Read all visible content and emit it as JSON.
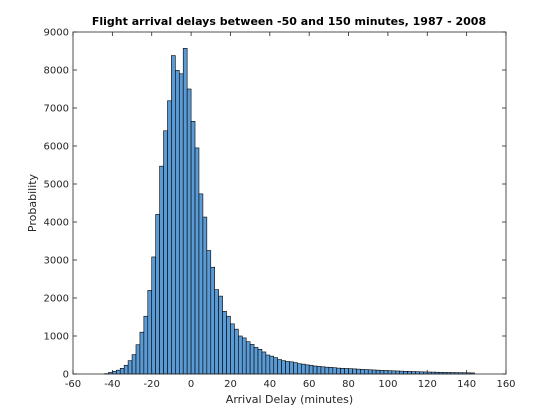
{
  "chart_data": {
    "type": "bar",
    "title": "Flight arrival delays between -50 and 150 minutes, 1987 - 2008",
    "xlabel": "Arrival Delay (minutes)",
    "ylabel": "Probability",
    "xlim": [
      -60,
      160
    ],
    "ylim": [
      0,
      9000
    ],
    "xticks": [
      "-60",
      "-40",
      "-20",
      "0",
      "20",
      "40",
      "60",
      "80",
      "100",
      "120",
      "140",
      "160"
    ],
    "yticks": [
      "0",
      "1000",
      "2000",
      "3000",
      "4000",
      "5000",
      "6000",
      "7000",
      "8000",
      "9000"
    ],
    "grid": false,
    "bin_width": 2,
    "bin_start": -44,
    "values": [
      10,
      40,
      70,
      100,
      150,
      230,
      350,
      510,
      770,
      1100,
      1520,
      2200,
      3080,
      4200,
      5470,
      6400,
      7190,
      8380,
      7990,
      7900,
      8570,
      7500,
      6650,
      5950,
      4740,
      4130,
      3250,
      2810,
      2220,
      2050,
      1650,
      1520,
      1320,
      1180,
      1000,
      950,
      850,
      780,
      700,
      650,
      580,
      500,
      470,
      430,
      380,
      350,
      330,
      320,
      300,
      270,
      260,
      240,
      230,
      210,
      200,
      190,
      180,
      175,
      165,
      155,
      150,
      145,
      140,
      135,
      128,
      122,
      117,
      111,
      106,
      101,
      96,
      92,
      87,
      83,
      79,
      75,
      71,
      68,
      64,
      61,
      58,
      55,
      52,
      50,
      47,
      45,
      42,
      40,
      38,
      36,
      34,
      33,
      31,
      29
    ],
    "bar_color": "#5b9bd5",
    "edge_color": "#000000"
  }
}
